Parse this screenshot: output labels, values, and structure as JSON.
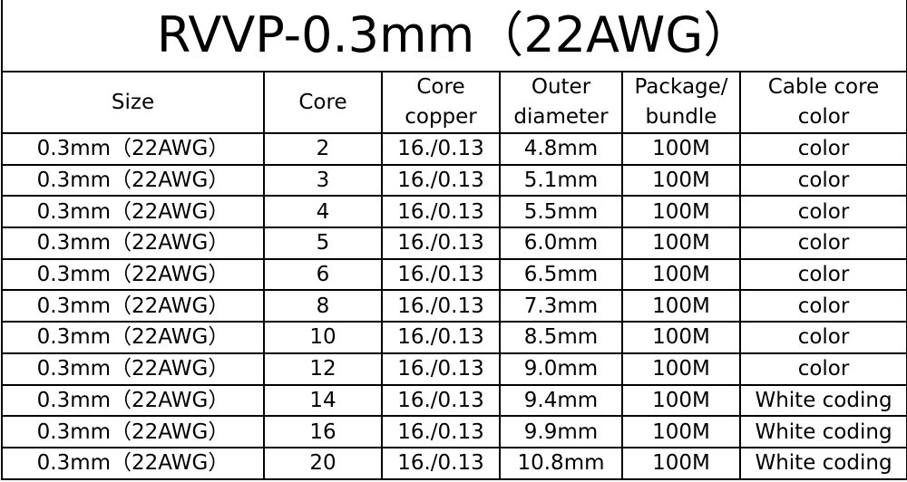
{
  "title": "RVVP-0.3mm（22AWG）",
  "header": {
    "cells": [
      [
        "Size"
      ],
      [
        "Core"
      ],
      [
        "Core",
        "copper"
      ],
      [
        "Outer",
        "diameter"
      ],
      [
        "Package/",
        "bundle"
      ],
      [
        "Cable core",
        "color"
      ]
    ]
  },
  "table": {
    "rows": [
      [
        "0.3mm（22AWG）",
        "2",
        "16./0.13",
        "4.8mm",
        "100M",
        "color"
      ],
      [
        "0.3mm（22AWG）",
        "3",
        "16./0.13",
        "5.1mm",
        "100M",
        "color"
      ],
      [
        "0.3mm（22AWG）",
        "4",
        "16./0.13",
        "5.5mm",
        "100M",
        "color"
      ],
      [
        "0.3mm（22AWG）",
        "5",
        "16./0.13",
        "6.0mm",
        "100M",
        "color"
      ],
      [
        "0.3mm（22AWG）",
        "6",
        "16./0.13",
        "6.5mm",
        "100M",
        "color"
      ],
      [
        "0.3mm（22AWG）",
        "8",
        "16./0.13",
        "7.3mm",
        "100M",
        "color"
      ],
      [
        "0.3mm（22AWG）",
        "10",
        "16./0.13",
        "8.5mm",
        "100M",
        "color"
      ],
      [
        "0.3mm（22AWG）",
        "12",
        "16./0.13",
        "9.0mm",
        "100M",
        "color"
      ],
      [
        "0.3mm（22AWG）",
        "14",
        "16./0.13",
        "9.4mm",
        "100M",
        "White coding"
      ],
      [
        "0.3mm（22AWG）",
        "16",
        "16./0.13",
        "9.9mm",
        "100M",
        "White coding"
      ],
      [
        "0.3mm（22AWG）",
        "20",
        "16./0.13",
        "10.8mm",
        "100M",
        "White coding"
      ]
    ]
  }
}
